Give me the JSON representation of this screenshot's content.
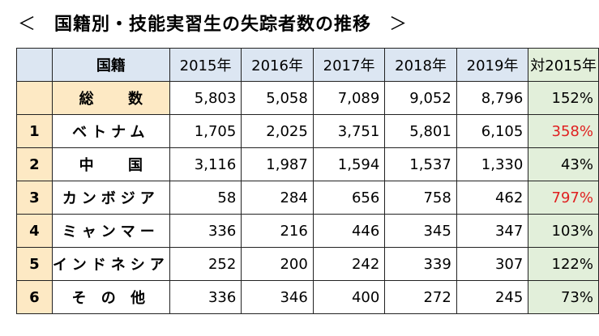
{
  "title": {
    "left_arrow": "＜",
    "text": "国籍別・技能実習生の失踪者数の推移",
    "right_arrow": "＞"
  },
  "table": {
    "headers": [
      "",
      "国籍",
      "2015年",
      "2016年",
      "2017年",
      "2018年",
      "2019年",
      "対2015年"
    ],
    "total": {
      "no": "",
      "label": "総 数",
      "values": [
        "5,803",
        "5,058",
        "7,089",
        "9,052",
        "8,796"
      ],
      "ratio": "152%"
    },
    "rows": [
      {
        "no": "1",
        "label": "ベトナム",
        "values": [
          "1,705",
          "2,025",
          "3,751",
          "5,801",
          "6,105"
        ],
        "ratio": "358%"
      },
      {
        "no": "2",
        "label": "中 国",
        "values": [
          "3,116",
          "1,987",
          "1,594",
          "1,537",
          "1,330"
        ],
        "ratio": "43%"
      },
      {
        "no": "3",
        "label": "カンボジア",
        "values": [
          "58",
          "284",
          "656",
          "758",
          "462"
        ],
        "ratio": "797%"
      },
      {
        "no": "4",
        "label": "ミャンマー",
        "values": [
          "336",
          "216",
          "446",
          "345",
          "347"
        ],
        "ratio": "103%"
      },
      {
        "no": "5",
        "label": "インドネシア",
        "values": [
          "252",
          "200",
          "242",
          "339",
          "307"
        ],
        "ratio": "122%"
      },
      {
        "no": "6",
        "label": "そ の 他",
        "values": [
          "336",
          "346",
          "400",
          "272",
          "245"
        ],
        "ratio": "73%"
      }
    ],
    "highlight_color": "#e02020"
  }
}
